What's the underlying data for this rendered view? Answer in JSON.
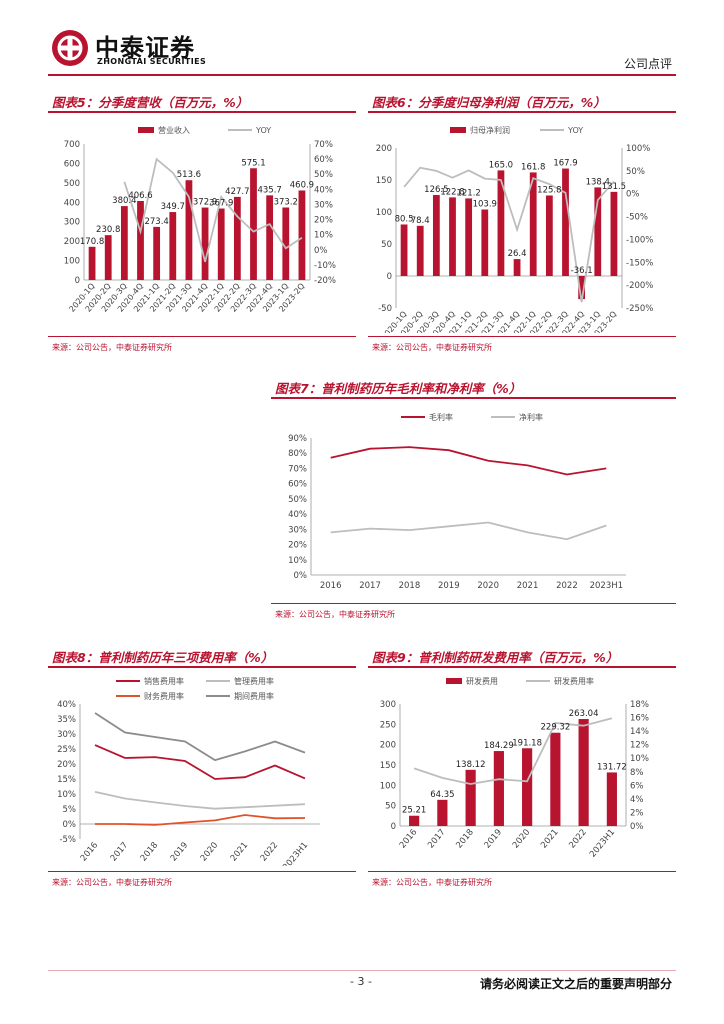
{
  "header": {
    "logo_cn": "中泰证券",
    "logo_en": "ZHONGTAI SECURITIES",
    "doc_type": "公司点评"
  },
  "source_text": "来源：公司公告，中泰证券研究所",
  "footer": {
    "page": "- 3 -",
    "disclaimer": "请务必阅读正文之后的重要声明部分"
  },
  "colors": {
    "accent": "#b8132f",
    "gray": "#bdbdbd",
    "orange": "#e0522a",
    "darkgray": "#8c8c8c"
  },
  "chart_data": [
    {
      "id": "fig5",
      "type": "bar+line",
      "title": "图表5：分季度营收（百万元，%）",
      "categories": [
        "2020-1Q",
        "2020-2Q",
        "2020-3Q",
        "2020-4Q",
        "2021-1Q",
        "2021-2Q",
        "2021-3Q",
        "2021-4Q",
        "2022-1Q",
        "2022-2Q",
        "2022-3Q",
        "2022-4Q",
        "2023-1Q",
        "2023-2Q"
      ],
      "series": [
        {
          "name": "营业收入",
          "axis": "left",
          "values": [
            170.8,
            230.8,
            380.4,
            406.6,
            273.4,
            349.7,
            513.6,
            372.9,
            367.9,
            427.7,
            575.1,
            435.7,
            373.2,
            460.9
          ]
        },
        {
          "name": "YOY",
          "axis": "right",
          "values": [
            null,
            null,
            45,
            12,
            60,
            51,
            35,
            -8,
            35,
            22,
            12,
            17,
            1,
            8
          ]
        }
      ],
      "bar_labels": [
        "170.8",
        "230.8",
        "380.4",
        "406.6",
        "273.4",
        "349.7",
        "513.6",
        "372.9",
        "367.9",
        "427.7",
        "575.1",
        "435.7",
        "373.2",
        "460.9"
      ],
      "left_ticks": [
        "0",
        "100",
        "200",
        "300",
        "400",
        "500",
        "600",
        "700"
      ],
      "right_ticks": [
        "-20%",
        "-10%",
        "0%",
        "10%",
        "20%",
        "30%",
        "40%",
        "50%",
        "60%",
        "70%"
      ],
      "ylim_left": [
        0,
        700
      ],
      "ylim_right": [
        -20,
        70
      ]
    },
    {
      "id": "fig6",
      "type": "bar+line",
      "title": "图表6：分季度归母净利润（百万元，%）",
      "categories": [
        "2020-1Q",
        "2020-2Q",
        "2020-3Q",
        "2020-4Q",
        "2021-1Q",
        "2021-2Q",
        "2021-3Q",
        "2021-4Q",
        "2022-1Q",
        "2022-2Q",
        "2022-3Q",
        "2022-4Q",
        "2023-1Q",
        "2023-2Q"
      ],
      "series": [
        {
          "name": "归母净利润",
          "axis": "left",
          "values": [
            80.5,
            78.4,
            126.5,
            122.8,
            121.2,
            103.9,
            165.0,
            26.4,
            161.8,
            125.8,
            167.9,
            -36.1,
            138.4,
            131.5
          ]
        },
        {
          "name": "YOY",
          "axis": "right",
          "values": [
            15,
            57,
            50,
            35,
            51,
            33,
            30,
            -79,
            34,
            21,
            2,
            -237,
            -14,
            27
          ]
        }
      ],
      "bar_labels": [
        "80.5",
        "78.4",
        "126.5",
        "122.8",
        "121.2",
        "103.9",
        "165.0",
        "26.4",
        "161.8",
        "125.8",
        "167.9",
        "-36.1",
        "138.4",
        "131.5"
      ],
      "left_ticks": [
        "-50",
        "0",
        "50",
        "100",
        "150",
        "200"
      ],
      "right_ticks": [
        "-250%",
        "-200%",
        "-150%",
        "-100%",
        "-50%",
        "0%",
        "50%",
        "100%"
      ],
      "ylim_left": [
        -50,
        200
      ],
      "ylim_right": [
        -250,
        100
      ]
    },
    {
      "id": "fig7",
      "type": "line",
      "title": "图表7：普利制药历年毛利率和净利率（%）",
      "categories": [
        "2016",
        "2017",
        "2018",
        "2019",
        "2020",
        "2021",
        "2022",
        "2023H1"
      ],
      "series": [
        {
          "name": "毛利率",
          "values": [
            77,
            83,
            84,
            82,
            75,
            72,
            66,
            70
          ]
        },
        {
          "name": "净利率",
          "values": [
            28,
            30.5,
            29.5,
            32,
            34.5,
            28,
            23.5,
            32.5
          ]
        }
      ],
      "y_ticks": [
        "0%",
        "10%",
        "20%",
        "30%",
        "40%",
        "50%",
        "60%",
        "70%",
        "80%",
        "90%"
      ],
      "ylim": [
        0,
        90
      ]
    },
    {
      "id": "fig8",
      "type": "line",
      "title": "图表8：普利制药历年三项费用率（%）",
      "categories": [
        "2016",
        "2017",
        "2018",
        "2019",
        "2020",
        "2021",
        "2022",
        "2023H1"
      ],
      "series": [
        {
          "name": "销售费用率",
          "values": [
            26.3,
            22,
            22.3,
            21,
            15,
            15.6,
            19.5,
            15.2
          ]
        },
        {
          "name": "管理费用率",
          "values": [
            10.7,
            8.5,
            7.2,
            6,
            5.1,
            5.6,
            6.1,
            6.6
          ]
        },
        {
          "name": "财务费用率",
          "values": [
            0,
            0,
            -0.3,
            0.5,
            1.2,
            3,
            1.9,
            2
          ]
        },
        {
          "name": "期间费用率",
          "values": [
            37,
            30.5,
            29,
            27.5,
            21.3,
            24.2,
            27.5,
            23.8
          ]
        }
      ],
      "y_ticks": [
        "-5%",
        "0%",
        "5%",
        "10%",
        "15%",
        "20%",
        "25%",
        "30%",
        "35%",
        "40%"
      ],
      "ylim": [
        -5,
        40
      ]
    },
    {
      "id": "fig9",
      "type": "bar+line",
      "title": "图表9：普利制药研发费用率（百万元，%）",
      "categories": [
        "2016",
        "2017",
        "2018",
        "2019",
        "2020",
        "2021",
        "2022",
        "2023H1"
      ],
      "series": [
        {
          "name": "研发费用",
          "axis": "left",
          "values": [
            25.21,
            64.35,
            138.12,
            184.29,
            191.18,
            229.32,
            263.04,
            131.72
          ]
        },
        {
          "name": "研发费用率",
          "axis": "right",
          "values": [
            8.5,
            7.1,
            6.2,
            6.9,
            6.6,
            15.2,
            14.8,
            15.9
          ]
        }
      ],
      "bar_labels": [
        "25.21",
        "64.35",
        "138.12",
        "184.29",
        "191.18",
        "229.32",
        "263.04",
        "131.72"
      ],
      "left_ticks": [
        "0",
        "50",
        "100",
        "150",
        "200",
        "250",
        "300"
      ],
      "right_ticks": [
        "0%",
        "2%",
        "4%",
        "6%",
        "8%",
        "10%",
        "12%",
        "14%",
        "16%",
        "18%"
      ],
      "ylim_left": [
        0,
        300
      ],
      "ylim_right": [
        0,
        18
      ]
    }
  ]
}
